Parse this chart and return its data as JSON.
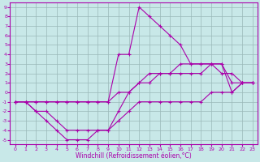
{
  "background_color": "#c8e8e8",
  "grid_color": "#9ab8b8",
  "line_color": "#aa00aa",
  "xlim": [
    -0.5,
    23.5
  ],
  "ylim": [
    -5.5,
    9.5
  ],
  "xtick_labels": [
    "0",
    "1",
    "2",
    "3",
    "4",
    "5",
    "6",
    "7",
    "8",
    "9",
    "10",
    "11",
    "12",
    "13",
    "14",
    "15",
    "16",
    "17",
    "18",
    "19",
    "20",
    "21",
    "22",
    "23"
  ],
  "xtick_vals": [
    0,
    1,
    2,
    3,
    4,
    5,
    6,
    7,
    8,
    9,
    10,
    11,
    12,
    13,
    14,
    15,
    16,
    17,
    18,
    19,
    20,
    21,
    22,
    23
  ],
  "ytick_labels": [
    "-5",
    "-4",
    "-3",
    "-2",
    "-1",
    "0",
    "1",
    "2",
    "3",
    "4",
    "5",
    "6",
    "7",
    "8",
    "9"
  ],
  "ytick_vals": [
    -5,
    -4,
    -3,
    -2,
    -1,
    0,
    1,
    2,
    3,
    4,
    5,
    6,
    7,
    8,
    9
  ],
  "xlabel": "Windchill (Refroidissement éolien,°C)",
  "series": [
    {
      "x": [
        0,
        1,
        2,
        3,
        4,
        5,
        6,
        7,
        8,
        9,
        10,
        11,
        12,
        13,
        14,
        15,
        16,
        17,
        18,
        19,
        20,
        21,
        22,
        23
      ],
      "y": [
        -1,
        -1,
        -1,
        -1,
        -1,
        -1,
        -1,
        -1,
        -1,
        -1,
        4,
        4,
        9,
        8,
        7,
        6,
        5,
        3,
        3,
        3,
        2,
        2,
        1,
        1
      ]
    },
    {
      "x": [
        0,
        1,
        2,
        3,
        4,
        5,
        6,
        7,
        8,
        9,
        10,
        11,
        12,
        13,
        14,
        15,
        16,
        17,
        18,
        19,
        20,
        21,
        22,
        23
      ],
      "y": [
        -1,
        -1,
        -1,
        -1,
        -1,
        -1,
        -1,
        -1,
        -1,
        -1,
        0,
        0,
        1,
        1,
        2,
        2,
        2,
        2,
        2,
        3,
        3,
        1,
        1,
        1
      ]
    },
    {
      "x": [
        0,
        1,
        2,
        3,
        4,
        5,
        6,
        7,
        8,
        9,
        10,
        11,
        12,
        13,
        14,
        15,
        16,
        17,
        18,
        19,
        20,
        21,
        22,
        23
      ],
      "y": [
        -1,
        -1,
        -2,
        -2,
        -3,
        -4,
        -4,
        -4,
        -4,
        -4,
        -2,
        0,
        1,
        2,
        2,
        2,
        3,
        3,
        3,
        3,
        3,
        0,
        1,
        1
      ]
    },
    {
      "x": [
        0,
        1,
        2,
        3,
        4,
        5,
        6,
        7,
        8,
        9,
        10,
        11,
        12,
        13,
        14,
        15,
        16,
        17,
        18,
        19,
        20,
        21,
        22,
        23
      ],
      "y": [
        -1,
        -1,
        -2,
        -3,
        -4,
        -5,
        -5,
        -5,
        -4,
        -4,
        -3,
        -2,
        -1,
        -1,
        -1,
        -1,
        -1,
        -1,
        -1,
        0,
        0,
        0,
        1,
        1
      ]
    }
  ]
}
